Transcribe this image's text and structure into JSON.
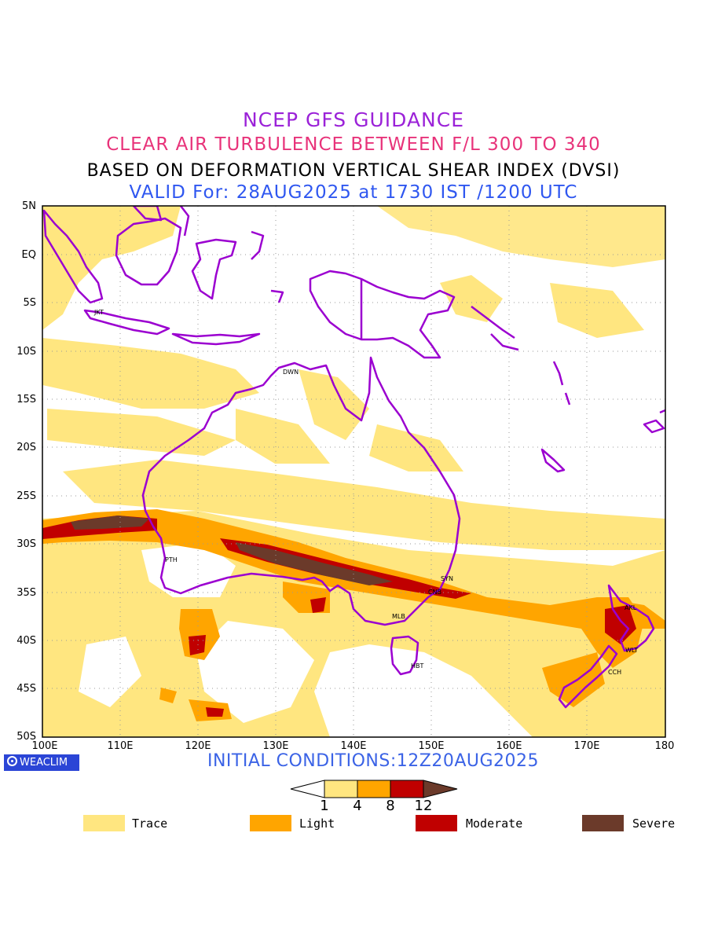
{
  "header": {
    "line1": "NCEP GFS GUIDANCE",
    "line2": "CLEAR AIR TURBULENCE BETWEEN F/L 300 TO 340",
    "line3": "BASED ON DEFORMATION VERTICAL SHEAR INDEX (DVSI)",
    "line4": "VALID For: 28AUG2025 at 1730 IST /1200 UTC"
  },
  "map": {
    "lat_labels": [
      "5N",
      "EQ",
      "5S",
      "10S",
      "15S",
      "20S",
      "25S",
      "30S",
      "35S",
      "40S",
      "45S",
      "50S"
    ],
    "lon_labels": [
      "100E",
      "110E",
      "120E",
      "130E",
      "140E",
      "150E",
      "160E",
      "170E",
      "180"
    ],
    "lon_range": [
      100,
      180
    ],
    "lat_range": [
      -50,
      5
    ],
    "grid": "dotted",
    "cities": [
      {
        "code": "JKT"
      },
      {
        "code": "DWN"
      },
      {
        "code": "PTH"
      },
      {
        "code": "SYN"
      },
      {
        "code": "CNB"
      },
      {
        "code": "MLB"
      },
      {
        "code": "HBT"
      },
      {
        "code": "AKL"
      },
      {
        "code": "WLT"
      },
      {
        "code": "CCH"
      }
    ]
  },
  "footer": {
    "logo_text": "WEACLIM",
    "initial_conditions": "INITIAL CONDITIONS:12Z20AUG2025"
  },
  "colorbar": {
    "levels": [
      "1",
      "4",
      "8",
      "12"
    ],
    "colors": [
      "#ffe680",
      "#ffa500",
      "#c00000",
      "#6b3a2a"
    ]
  },
  "legend": [
    {
      "label": "Trace",
      "color": "#ffe680"
    },
    {
      "label": "Light",
      "color": "#ffa500"
    },
    {
      "label": "Moderate",
      "color": "#c00000"
    },
    {
      "label": "Severe",
      "color": "#6b3a2a"
    }
  ]
}
